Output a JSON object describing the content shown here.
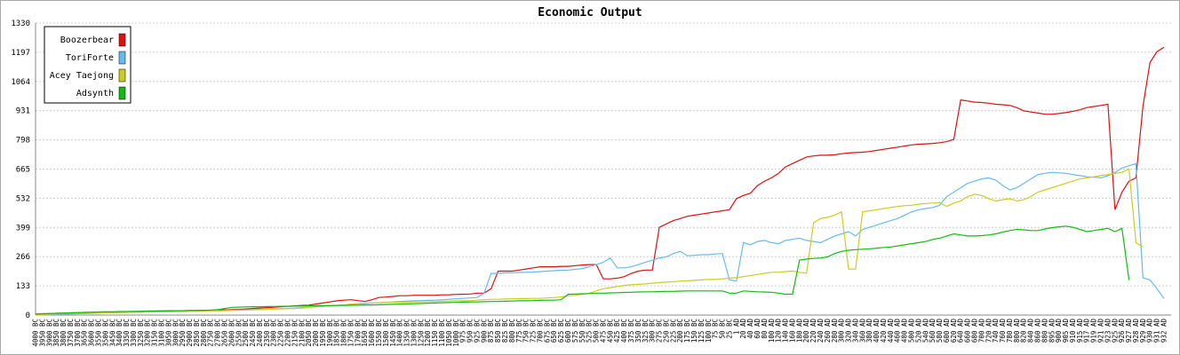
{
  "chart_data": {
    "type": "line",
    "title": "Economic Output",
    "categories": [
      "4000 BC",
      "3950 BC",
      "3900 BC",
      "3850 BC",
      "3800 BC",
      "3750 BC",
      "3700 BC",
      "3650 BC",
      "3600 BC",
      "3550 BC",
      "3500 BC",
      "3450 BC",
      "3400 BC",
      "3350 BC",
      "3300 BC",
      "3250 BC",
      "3200 BC",
      "3150 BC",
      "3100 BC",
      "3050 BC",
      "3000 BC",
      "2950 BC",
      "2900 BC",
      "2850 BC",
      "2800 BC",
      "2750 BC",
      "2700 BC",
      "2650 BC",
      "2600 BC",
      "2550 BC",
      "2500 BC",
      "2450 BC",
      "2400 BC",
      "2350 BC",
      "2300 BC",
      "2250 BC",
      "2200 BC",
      "2150 BC",
      "2100 BC",
      "2050 BC",
      "2000 BC",
      "1950 BC",
      "1900 BC",
      "1850 BC",
      "1800 BC",
      "1750 BC",
      "1700 BC",
      "1650 BC",
      "1600 BC",
      "1550 BC",
      "1500 BC",
      "1450 BC",
      "1400 BC",
      "1350 BC",
      "1300 BC",
      "1250 BC",
      "1200 BC",
      "1150 BC",
      "1100 BC",
      "1050 BC",
      "1000 BC",
      "975 BC",
      "950 BC",
      "925 BC",
      "900 BC",
      "875 BC",
      "850 BC",
      "825 BC",
      "800 BC",
      "775 BC",
      "750 BC",
      "725 BC",
      "700 BC",
      "675 BC",
      "650 BC",
      "625 BC",
      "600 BC",
      "575 BC",
      "550 BC",
      "525 BC",
      "500 BC",
      "475 BC",
      "450 BC",
      "425 BC",
      "400 BC",
      "375 BC",
      "350 BC",
      "325 BC",
      "300 BC",
      "275 BC",
      "250 BC",
      "225 BC",
      "200 BC",
      "175 BC",
      "150 BC",
      "125 BC",
      "100 BC",
      "75 BC",
      "50 BC",
      "25 BC",
      "1 AD",
      "20 AD",
      "40 AD",
      "60 AD",
      "80 AD",
      "100 AD",
      "120 AD",
      "140 AD",
      "160 AD",
      "180 AD",
      "200 AD",
      "220 AD",
      "240 AD",
      "260 AD",
      "280 AD",
      "300 AD",
      "320 AD",
      "340 AD",
      "360 AD",
      "380 AD",
      "400 AD",
      "420 AD",
      "440 AD",
      "460 AD",
      "480 AD",
      "500 AD",
      "520 AD",
      "540 AD",
      "560 AD",
      "580 AD",
      "600 AD",
      "620 AD",
      "640 AD",
      "660 AD",
      "680 AD",
      "700 AD",
      "720 AD",
      "740 AD",
      "760 AD",
      "780 AD",
      "800 AD",
      "820 AD",
      "840 AD",
      "860 AD",
      "880 AD",
      "895 AD",
      "900 AD",
      "905 AD",
      "910 AD",
      "915 AD",
      "917 AD",
      "919 AD",
      "921 AD",
      "923 AD",
      "925 AD",
      "926 AD",
      "927 AD",
      "928 AD",
      "929 AD",
      "930 AD",
      "931 AD",
      "932 AD"
    ],
    "series": [
      {
        "name": "Boozerbear",
        "color": "#dd1111",
        "values": [
          5,
          6,
          7,
          8,
          9,
          10,
          11,
          12,
          12,
          13,
          14,
          14,
          15,
          15,
          16,
          17,
          18,
          18,
          19,
          20,
          20,
          20,
          21,
          21,
          22,
          22,
          23,
          24,
          25,
          26,
          28,
          30,
          32,
          34,
          36,
          38,
          40,
          42,
          44,
          45,
          50,
          55,
          60,
          65,
          68,
          70,
          66,
          62,
          70,
          80,
          82,
          85,
          88,
          88,
          90,
          90,
          90,
          90,
          92,
          92,
          94,
          95,
          96,
          100,
          100,
          120,
          200,
          200,
          200,
          205,
          210,
          215,
          220,
          220,
          220,
          222,
          222,
          225,
          228,
          230,
          230,
          165,
          165,
          168,
          175,
          190,
          200,
          205,
          205,
          400,
          415,
          430,
          440,
          450,
          455,
          460,
          465,
          470,
          475,
          480,
          530,
          545,
          555,
          590,
          610,
          625,
          645,
          675,
          690,
          705,
          720,
          725,
          728,
          728,
          730,
          735,
          738,
          740,
          742,
          745,
          750,
          755,
          760,
          765,
          770,
          775,
          778,
          780,
          782,
          785,
          790,
          800,
          980,
          975,
          970,
          968,
          965,
          960,
          958,
          955,
          945,
          930,
          925,
          920,
          915,
          915,
          918,
          922,
          928,
          935,
          945,
          950,
          955,
          960,
          480,
          560,
          610,
          625,
          950,
          1150,
          1200,
          1220
        ]
      },
      {
        "name": "ToriForte",
        "color": "#66bbee",
        "values": [
          0,
          1,
          2,
          3,
          4,
          5,
          6,
          7,
          8,
          9,
          10,
          10,
          11,
          12,
          12,
          13,
          14,
          14,
          15,
          16,
          16,
          17,
          18,
          18,
          19,
          20,
          20,
          21,
          22,
          23,
          24,
          25,
          26,
          27,
          28,
          29,
          30,
          32,
          34,
          36,
          38,
          40,
          42,
          44,
          46,
          48,
          50,
          52,
          54,
          56,
          58,
          60,
          62,
          64,
          65,
          66,
          67,
          68,
          70,
          72,
          74,
          76,
          78,
          80,
          100,
          190,
          190,
          192,
          193,
          194,
          195,
          196,
          198,
          200,
          202,
          204,
          205,
          208,
          212,
          220,
          230,
          240,
          260,
          215,
          215,
          220,
          230,
          240,
          250,
          260,
          265,
          280,
          290,
          270,
          272,
          275,
          275,
          278,
          280,
          160,
          155,
          330,
          320,
          335,
          340,
          330,
          325,
          340,
          345,
          350,
          340,
          335,
          330,
          345,
          360,
          370,
          380,
          360,
          390,
          400,
          410,
          420,
          430,
          440,
          455,
          470,
          480,
          485,
          490,
          500,
          540,
          560,
          580,
          600,
          610,
          620,
          625,
          615,
          590,
          570,
          580,
          600,
          620,
          640,
          645,
          650,
          648,
          645,
          640,
          635,
          630,
          628,
          625,
          635,
          650,
          670,
          680,
          690,
          170,
          160,
          120,
          75
        ]
      },
      {
        "name": "Acey Taejong",
        "color": "#cccc22",
        "values": [
          2,
          3,
          4,
          5,
          6,
          7,
          8,
          9,
          10,
          10,
          11,
          11,
          12,
          12,
          13,
          13,
          14,
          14,
          15,
          15,
          16,
          16,
          17,
          18,
          18,
          19,
          20,
          20,
          21,
          22,
          23,
          24,
          25,
          26,
          27,
          28,
          29,
          30,
          32,
          35,
          38,
          40,
          42,
          44,
          46,
          50,
          52,
          54,
          55,
          56,
          57,
          58,
          58,
          59,
          60,
          60,
          61,
          62,
          63,
          64,
          65,
          65,
          66,
          68,
          70,
          72,
          72,
          73,
          74,
          75,
          75,
          76,
          76,
          78,
          80,
          82,
          88,
          90,
          95,
          100,
          110,
          120,
          125,
          130,
          135,
          138,
          140,
          142,
          145,
          148,
          150,
          152,
          155,
          156,
          158,
          160,
          162,
          162,
          165,
          168,
          170,
          175,
          180,
          185,
          190,
          195,
          195,
          198,
          200,
          195,
          190,
          420,
          440,
          445,
          455,
          470,
          210,
          210,
          470,
          475,
          480,
          485,
          490,
          495,
          498,
          500,
          505,
          508,
          510,
          512,
          495,
          510,
          520,
          540,
          550,
          545,
          530,
          520,
          525,
          530,
          520,
          525,
          540,
          560,
          570,
          580,
          590,
          600,
          610,
          620,
          625,
          630,
          635,
          640,
          645,
          650,
          665,
          330,
          310,
          null,
          null,
          null
        ]
      },
      {
        "name": "Adsynth",
        "color": "#11bb11",
        "values": [
          5,
          6,
          7,
          8,
          9,
          10,
          11,
          12,
          13,
          14,
          15,
          15,
          16,
          16,
          17,
          17,
          18,
          18,
          19,
          19,
          20,
          20,
          21,
          21,
          22,
          23,
          25,
          30,
          35,
          36,
          37,
          38,
          38,
          39,
          39,
          40,
          40,
          41,
          41,
          42,
          42,
          43,
          43,
          44,
          44,
          45,
          45,
          46,
          46,
          47,
          48,
          49,
          50,
          51,
          52,
          53,
          54,
          55,
          56,
          57,
          58,
          59,
          60,
          60,
          61,
          62,
          62,
          63,
          64,
          65,
          65,
          66,
          67,
          68,
          68,
          70,
          95,
          96,
          97,
          98,
          100,
          100,
          101,
          102,
          103,
          104,
          105,
          106,
          106,
          107,
          108,
          108,
          109,
          110,
          110,
          110,
          110,
          110,
          110,
          100,
          100,
          110,
          108,
          106,
          105,
          104,
          100,
          95,
          95,
          250,
          255,
          258,
          260,
          265,
          280,
          290,
          295,
          298,
          300,
          302,
          305,
          308,
          310,
          315,
          320,
          325,
          330,
          335,
          345,
          350,
          360,
          370,
          365,
          360,
          360,
          362,
          365,
          370,
          378,
          385,
          390,
          388,
          385,
          385,
          392,
          398,
          402,
          405,
          400,
          390,
          380,
          385,
          390,
          395,
          380,
          395,
          160,
          null,
          null,
          null,
          null,
          null
        ]
      }
    ],
    "ylim": [
      0,
      1330
    ],
    "yticks": [
      0,
      133,
      266,
      399,
      532,
      665,
      798,
      931,
      1064,
      1197,
      1330
    ],
    "grid": true,
    "legend": "top-left"
  }
}
